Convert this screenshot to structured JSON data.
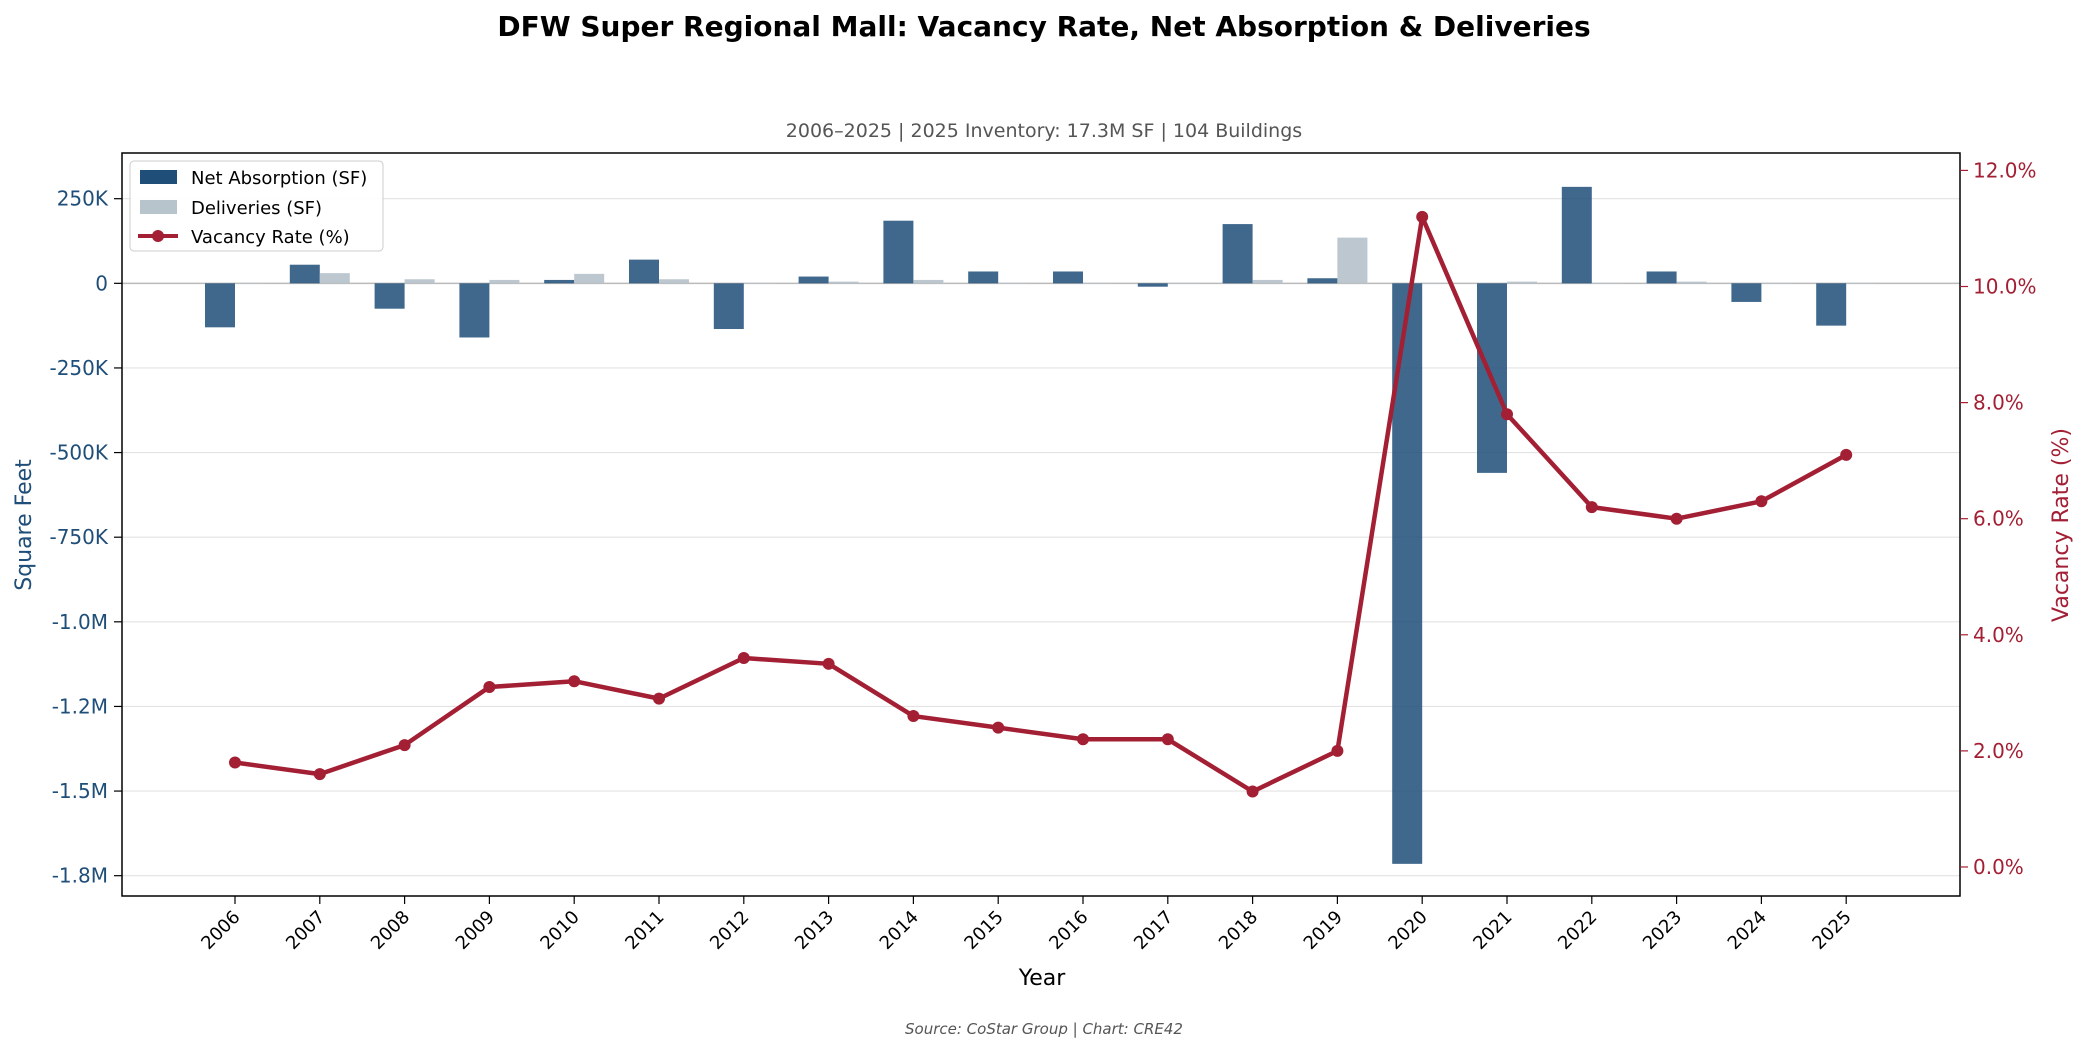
{
  "chart_data": {
    "type": "bar",
    "title": "DFW Super Regional Mall: Vacancy Rate, Net Absorption & Deliveries",
    "subtitle": "2006–2025  |  2025 Inventory: 17.3M SF  |  104 Buildings",
    "source": "Source: CoStar Group  |  Chart: CRE42",
    "xlabel": "Year",
    "ylabel_left": "Square Feet",
    "ylabel_right": "Vacancy Rate (%)",
    "categories": [
      "2006",
      "2007",
      "2008",
      "2009",
      "2010",
      "2011",
      "2012",
      "2013",
      "2014",
      "2015",
      "2016",
      "2017",
      "2018",
      "2019",
      "2020",
      "2021",
      "2022",
      "2023",
      "2024",
      "2025"
    ],
    "ylim_left": [
      -1810000,
      385000
    ],
    "ylim_right": [
      -0.5,
      12.3
    ],
    "left_ticks": [
      {
        "value": 250000,
        "label": "250K"
      },
      {
        "value": 0,
        "label": "0"
      },
      {
        "value": -250000,
        "label": "-250K"
      },
      {
        "value": -500000,
        "label": "-500K"
      },
      {
        "value": -750000,
        "label": "-750K"
      },
      {
        "value": -1000000,
        "label": "-1.0M"
      },
      {
        "value": -1250000,
        "label": "-1.2M"
      },
      {
        "value": -1500000,
        "label": "-1.5M"
      },
      {
        "value": -1750000,
        "label": "-1.8M"
      }
    ],
    "right_ticks": [
      {
        "value": 12,
        "label": "12.0%"
      },
      {
        "value": 10,
        "label": "10.0%"
      },
      {
        "value": 8,
        "label": "8.0%"
      },
      {
        "value": 6,
        "label": "6.0%"
      },
      {
        "value": 4,
        "label": "4.0%"
      },
      {
        "value": 2,
        "label": "2.0%"
      },
      {
        "value": 0,
        "label": "0.0%"
      }
    ],
    "grid": true,
    "legend_position": "top-left",
    "series": [
      {
        "name": "Net Absorption (SF)",
        "type": "bar",
        "axis": "left",
        "color": "#1f4e79",
        "values": [
          -130000,
          55000,
          -75000,
          -160000,
          10000,
          70000,
          -135000,
          20000,
          185000,
          35000,
          35000,
          -10000,
          175000,
          15000,
          -1715000,
          -560000,
          285000,
          35000,
          -55000,
          -125000
        ]
      },
      {
        "name": "Deliveries (SF)",
        "type": "bar",
        "axis": "left",
        "color": "#b8c4cc",
        "values": [
          0,
          30000,
          12000,
          10000,
          28000,
          12000,
          0,
          5000,
          10000,
          0,
          0,
          0,
          10000,
          135000,
          0,
          5000,
          0,
          5000,
          0,
          0
        ]
      },
      {
        "name": "Vacancy Rate (%)",
        "type": "line",
        "axis": "right",
        "color": "#a31f34",
        "values": [
          1.8,
          1.6,
          2.1,
          3.1,
          3.2,
          2.9,
          3.6,
          3.5,
          2.6,
          2.4,
          2.2,
          2.2,
          1.3,
          2.0,
          11.2,
          7.8,
          6.2,
          6.0,
          6.3,
          7.1
        ]
      }
    ]
  }
}
